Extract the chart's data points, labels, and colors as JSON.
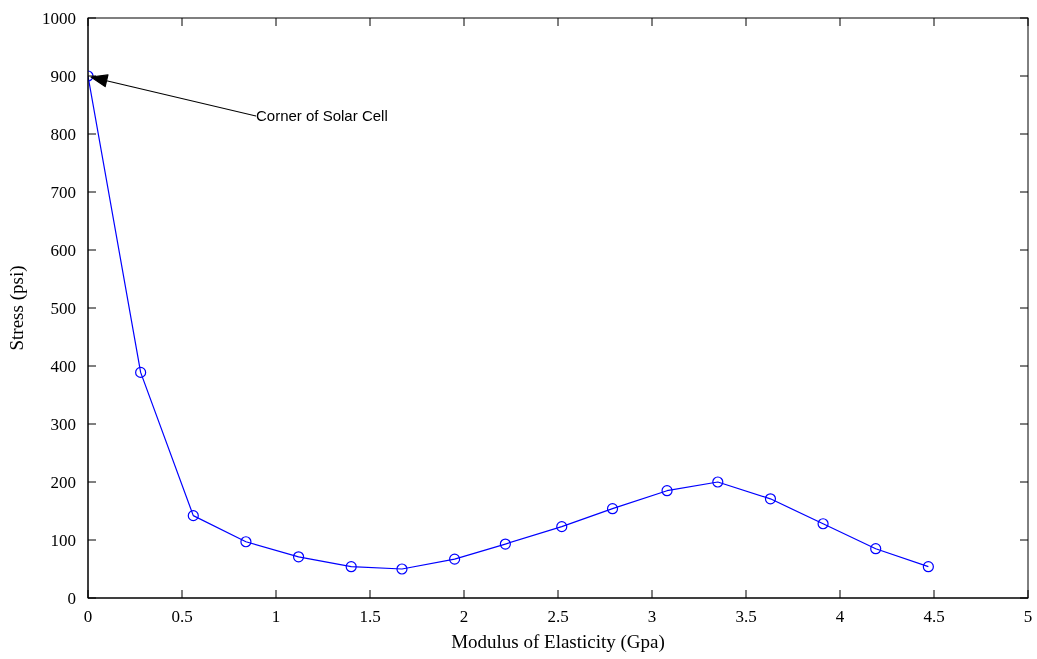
{
  "chart_data": {
    "type": "line",
    "xlabel": "Modulus of Elasticity (Gpa)",
    "ylabel": "Stress (psi)",
    "x": [
      0,
      0.28,
      0.56,
      0.84,
      1.12,
      1.4,
      1.67,
      1.95,
      2.22,
      2.52,
      2.79,
      3.08,
      3.35,
      3.63,
      3.91,
      4.19,
      4.47
    ],
    "series": [
      {
        "color": "#0000ff",
        "values": [
          900,
          389,
          142,
          97,
          71,
          54,
          50,
          67,
          93,
          123,
          154,
          185,
          200,
          171,
          128,
          85,
          54
        ]
      }
    ],
    "xlim": [
      0,
      5
    ],
    "xticks": [
      0,
      0.5,
      1,
      1.5,
      2,
      2.5,
      3,
      3.5,
      4,
      4.5,
      5
    ],
    "ylim": [
      0,
      1000
    ],
    "yticks": [
      0,
      100,
      200,
      300,
      400,
      500,
      600,
      700,
      800,
      900,
      1000
    ],
    "grid": false,
    "legend": false,
    "marker": "circle",
    "line_style": "solid",
    "annotations": [
      "Corner of Solar Cell"
    ]
  }
}
